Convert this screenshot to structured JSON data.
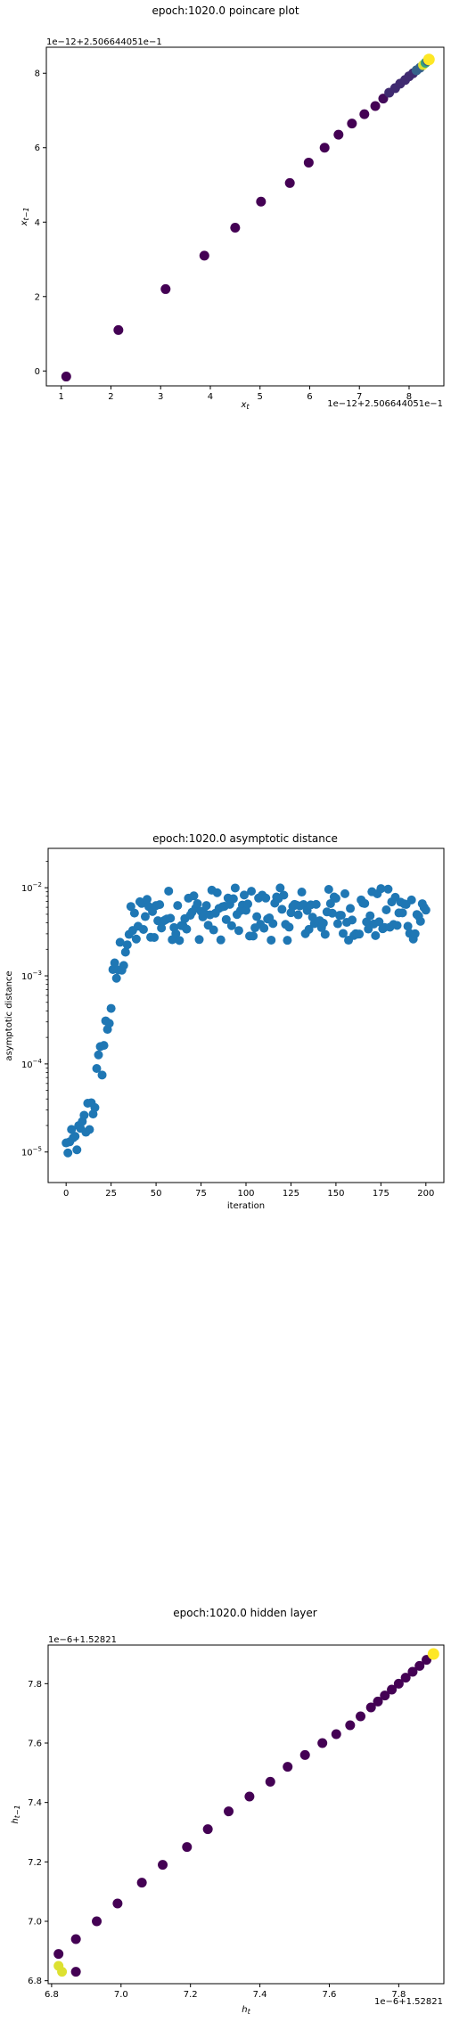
{
  "chart_data": [
    {
      "type": "scatter",
      "title": "epoch:1020.0 poincare plot",
      "xlabel": "x_t",
      "ylabel": "x_{t-1}",
      "x_offset_text": "1e−12+2.506644051e−1",
      "y_offset_text": "1e−12+2.506644051e−1",
      "xlim": [
        0.7,
        8.7
      ],
      "ylim": [
        -0.4,
        8.7
      ],
      "xticks": [
        1,
        2,
        3,
        4,
        5,
        6,
        7,
        8
      ],
      "yticks": [
        0,
        2,
        4,
        6,
        8
      ],
      "colormap": "viridis",
      "grid": false,
      "x": [
        1.1,
        2.15,
        3.1,
        3.88,
        4.5,
        5.02,
        5.6,
        5.98,
        6.3,
        6.58,
        6.85,
        7.1,
        7.32,
        7.48,
        7.6,
        7.72,
        7.82,
        7.92,
        8.0,
        8.08,
        8.15,
        8.22,
        8.28,
        8.33,
        8.37,
        8.4
      ],
      "y": [
        -0.15,
        1.1,
        2.2,
        3.1,
        3.85,
        4.55,
        5.05,
        5.6,
        6.0,
        6.35,
        6.65,
        6.9,
        7.12,
        7.32,
        7.48,
        7.6,
        7.72,
        7.82,
        7.92,
        8.0,
        8.08,
        8.15,
        8.22,
        8.28,
        8.33,
        8.37
      ]
    },
    {
      "type": "scatter",
      "title": "epoch:1020.0 asymptotic distance",
      "xlabel": "iteration",
      "ylabel": "asymptotic distance",
      "yscale": "log",
      "xlim": [
        -10,
        210
      ],
      "ylim": [
        4.5e-06,
        0.028
      ],
      "xticks": [
        0,
        25,
        50,
        75,
        100,
        125,
        150,
        175,
        200
      ],
      "yticks": [
        "10^-5",
        "10^-4",
        "10^-3",
        "10^-2"
      ],
      "color": "#1f77b4",
      "grid": false
    },
    {
      "type": "scatter",
      "title": "epoch:1020.0 hidden layer",
      "xlabel": "h_t",
      "ylabel": "h_{t-1}",
      "x_offset_text": "1e−6+1.52821",
      "y_offset_text": "1e−6+1.52821",
      "xlim": [
        6.79,
        7.93
      ],
      "ylim": [
        6.79,
        7.93
      ],
      "xticks": [
        6.8,
        7.0,
        7.2,
        7.4,
        7.6,
        7.8
      ],
      "yticks": [
        6.8,
        7.0,
        7.2,
        7.4,
        7.6,
        7.8
      ],
      "colormap": "viridis",
      "grid": false,
      "x": [
        6.82,
        6.87,
        6.83,
        6.82,
        6.87,
        6.93,
        6.99,
        7.06,
        7.12,
        7.19,
        7.25,
        7.31,
        7.37,
        7.43,
        7.48,
        7.53,
        7.58,
        7.62,
        7.66,
        7.69,
        7.72,
        7.74,
        7.76,
        7.78,
        7.8,
        7.82,
        7.84,
        7.86,
        7.88,
        7.9
      ],
      "y": [
        6.85,
        6.83,
        6.83,
        6.89,
        6.94,
        7.0,
        7.06,
        7.13,
        7.19,
        7.25,
        7.31,
        7.37,
        7.42,
        7.47,
        7.52,
        7.56,
        7.6,
        7.63,
        7.66,
        7.69,
        7.72,
        7.74,
        7.76,
        7.78,
        7.8,
        7.82,
        7.84,
        7.86,
        7.88,
        7.9
      ]
    }
  ]
}
